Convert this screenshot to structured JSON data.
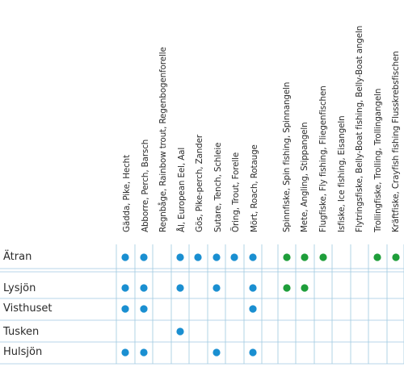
{
  "fish_headers": [
    "Gädda, Pike, Hecht",
    "Abborre, Perch, Barsch",
    "Regnbåge, Rainbow trout, Regenbogenforelle",
    "Ål, European Eel, Aal",
    "Gös, Pike-perch, Zander",
    "Sutare, Tench, Schleie",
    "Öring, Trout, Forelle",
    "Mört, Roach, Rotauge"
  ],
  "method_headers": [
    "Spinnfiske, Spin fishing, Spinnangeln",
    "Mete, Angling, Stippangeln",
    "Flugfiske, Fly fishing, Fliegenfischen",
    "Isfiske, Ice fishing, Eisangeln",
    "Flytringsfiske, Belly-Boat fishing, Belly-Boat angeln",
    "Trollingfiske, Trolling, Trollingangeln",
    "Kräftfiske, Crayfish fishing Flusskrebsfischen"
  ],
  "lakes": [
    {
      "name": "Ätran",
      "fish": [
        1,
        1,
        0,
        1,
        1,
        1,
        1,
        1
      ],
      "methods": [
        1,
        1,
        1,
        0,
        0,
        1,
        1
      ]
    },
    {
      "name": "Lysjön",
      "fish": [
        1,
        1,
        0,
        1,
        0,
        1,
        0,
        1
      ],
      "methods": [
        1,
        1,
        0,
        0,
        0,
        0,
        0
      ]
    },
    {
      "name": "Visthuset",
      "fish": [
        1,
        1,
        0,
        0,
        0,
        0,
        0,
        1
      ],
      "methods": [
        0,
        0,
        0,
        0,
        0,
        0,
        0
      ]
    },
    {
      "name": "Tusken",
      "fish": [
        0,
        0,
        0,
        1,
        0,
        0,
        0,
        0
      ],
      "methods": [
        0,
        0,
        0,
        0,
        0,
        0,
        0
      ]
    },
    {
      "name": "Hulsjön",
      "fish": [
        1,
        1,
        0,
        0,
        0,
        1,
        0,
        1
      ],
      "methods": [
        0,
        0,
        0,
        0,
        0,
        0,
        0
      ]
    }
  ],
  "colors": {
    "fish_dot": "#1a8fd1",
    "method_dot": "#1e9e3a",
    "grid_line": "#9fc9e0"
  }
}
